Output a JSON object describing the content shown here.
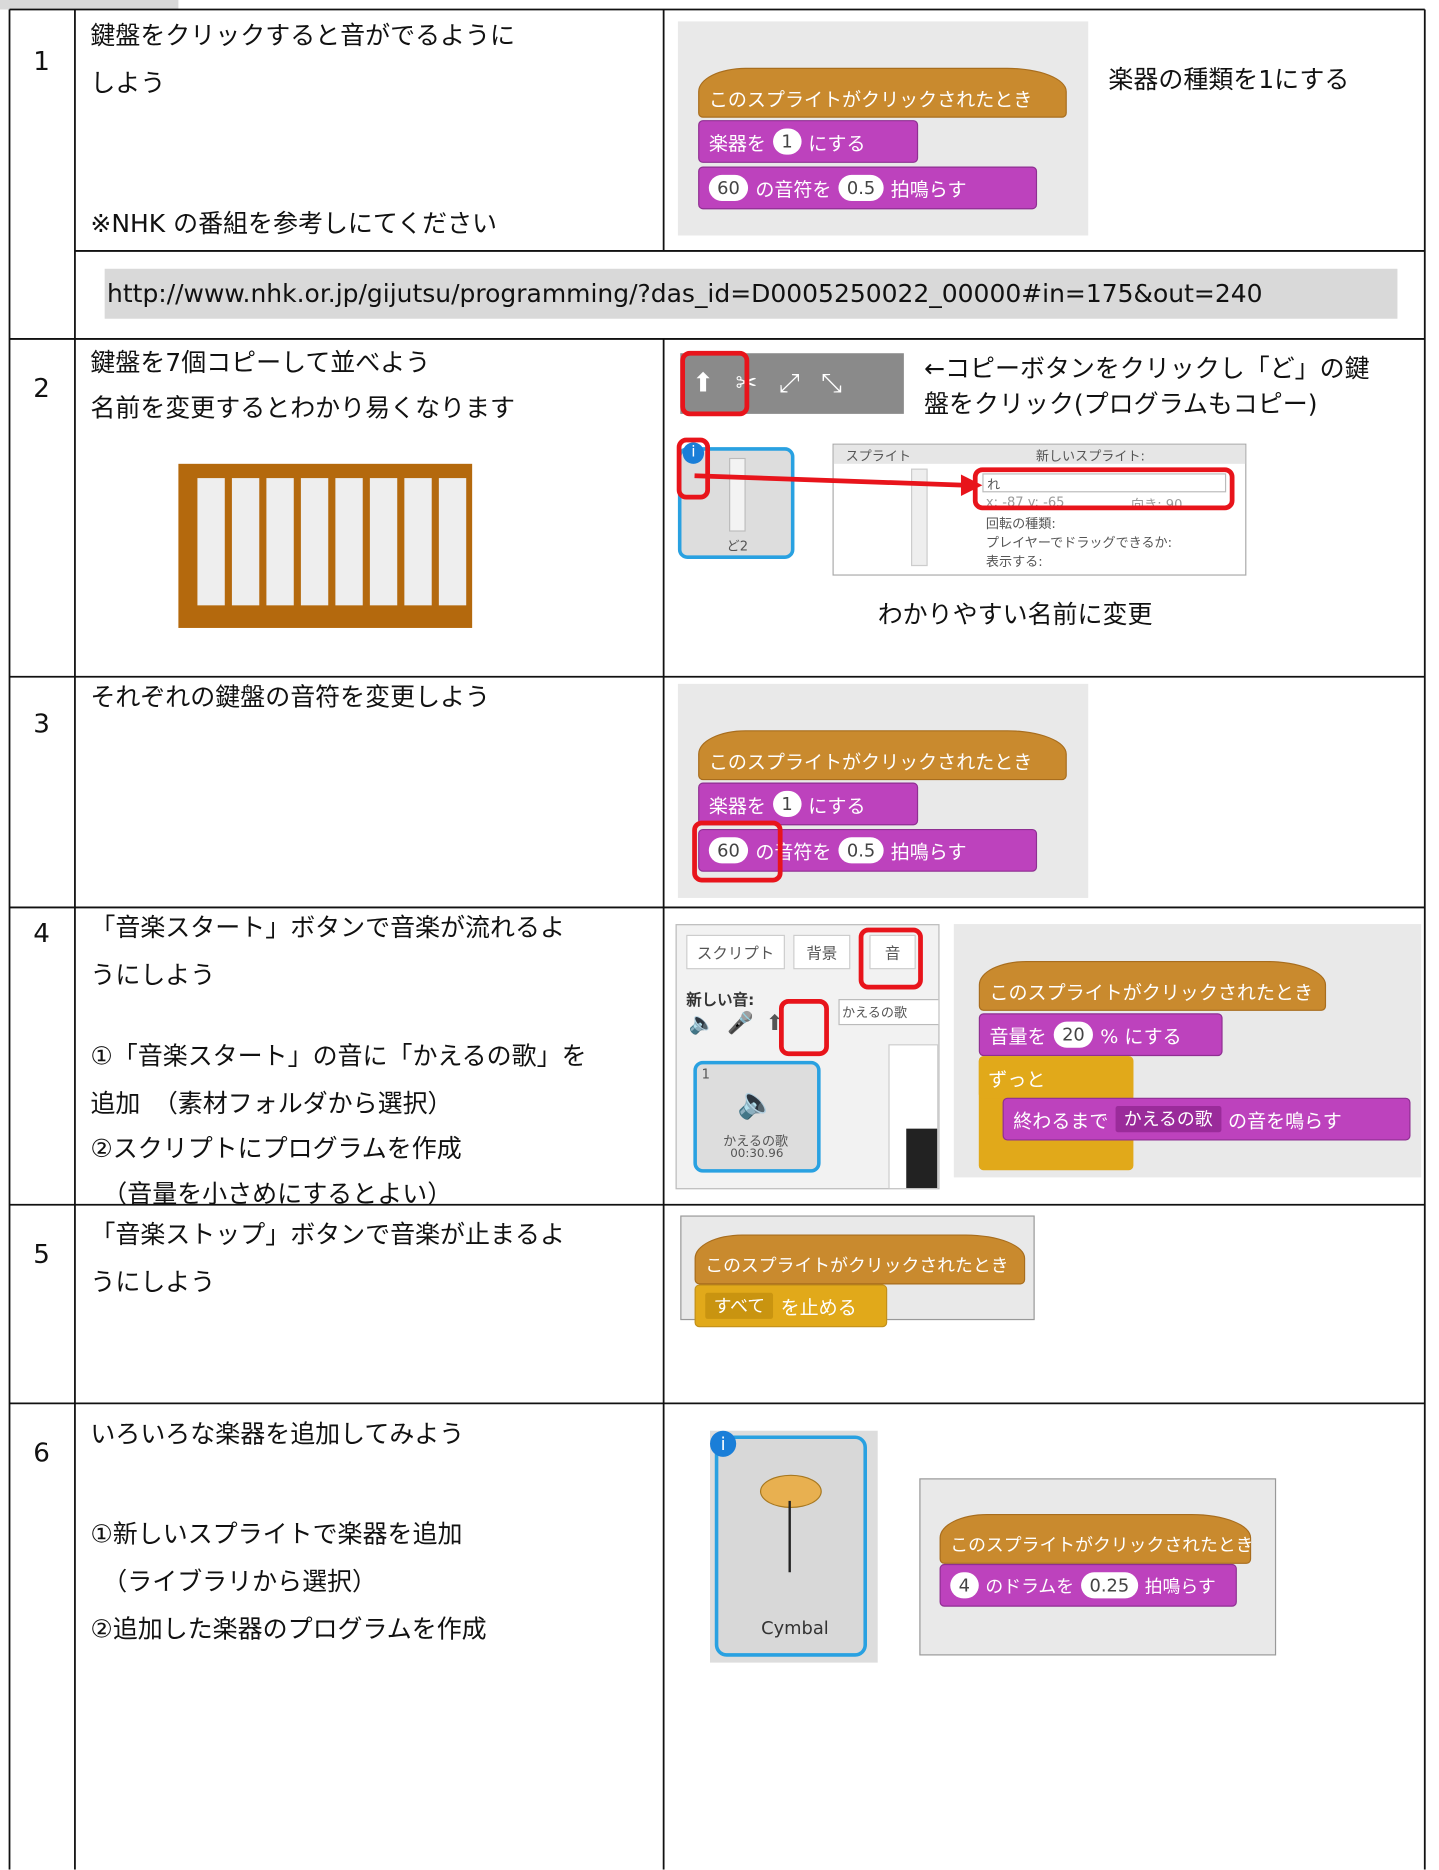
{
  "url": "http://www.nhk.or.jp/gijutsu/programming/?das_id=D0005250022_00000#in=175&out=240",
  "rows": [
    {
      "number": "1",
      "text": [
        "鍵盤をクリックすると音がでるように",
        "しよう"
      ],
      "note": "※NHK の番組を参考しにてください",
      "caption": "楽器の種類を1にする",
      "script": {
        "hat": "このスプライトがクリックされたとき",
        "instrument": [
          "楽器を",
          "1",
          "にする"
        ],
        "note_block": [
          "60",
          "の音符を",
          "0.5",
          "拍鳴らす"
        ]
      }
    },
    {
      "number": "2",
      "text": [
        "鍵盤を7個コピーして並べよう",
        "名前を変更するとわかり易くなります"
      ],
      "caption_top": [
        "←コピーボタンをクリックし「ど」の鍵",
        "盤をクリック(プログラムもコピー)"
      ],
      "caption_bottom": "わかりやすい名前に変更",
      "sprite_label": "ど2",
      "panel": {
        "title": "スプライト",
        "new": "新しいスプライト:",
        "name": "れ",
        "coords": "x: -87  y: -65",
        "direction": "向き: 90",
        "rotation": "回転の種類:",
        "drag": "プレイヤーでドラッグできるか:",
        "show": "表示する:"
      }
    },
    {
      "number": "3",
      "text": [
        "それぞれの鍵盤の音符を変更しよう"
      ],
      "script": {
        "hat": "このスプライトがクリックされたとき",
        "instrument": [
          "楽器を",
          "1",
          "にする"
        ],
        "note_block": [
          "60",
          "の音符を",
          "0.5",
          "拍鳴らす"
        ]
      }
    },
    {
      "number": "4",
      "text": [
        "「音楽スタート」ボタンで音楽が流れるよ",
        "うにしよう"
      ],
      "steps": [
        "①「音楽スタート」の音に「かえるの歌」を",
        "追加　（素材フォルダから選択）",
        "②スクリプトにプログラムを作成",
        "（音量を小さめにするとよい）"
      ],
      "tabs": [
        "スクリプト",
        "背景",
        "音"
      ],
      "new_sound": "新しい音:",
      "sound_index": "1",
      "sound_name": "かえるの歌",
      "sound_time": "00:30.96",
      "search": "かえるの歌",
      "script": {
        "hat": "このスプライトがクリックされたとき",
        "volume": [
          "音量を",
          "20",
          "% にする"
        ],
        "forever": "ずっと",
        "play": [
          "終わるまで",
          "かえるの歌",
          "の音を鳴らす"
        ]
      }
    },
    {
      "number": "5",
      "text": [
        "「音楽ストップ」ボタンで音楽が止まるよ",
        "うにしよう"
      ],
      "script": {
        "hat": "このスプライトがクリックされたとき",
        "stop": [
          "すべて",
          "を止める"
        ]
      }
    },
    {
      "number": "6",
      "text": [
        "いろいろな楽器を追加してみよう"
      ],
      "steps": [
        "①新しいスプライトで楽器を追加",
        "（ライブラリから選択）",
        "②追加した楽器のプログラムを作成"
      ],
      "sprite_label": "Cymbal",
      "script": {
        "hat": "このスプライトがクリックされたとき",
        "drum": [
          "4",
          "のドラムを",
          "0.25",
          "拍鳴らす"
        ]
      }
    }
  ]
}
